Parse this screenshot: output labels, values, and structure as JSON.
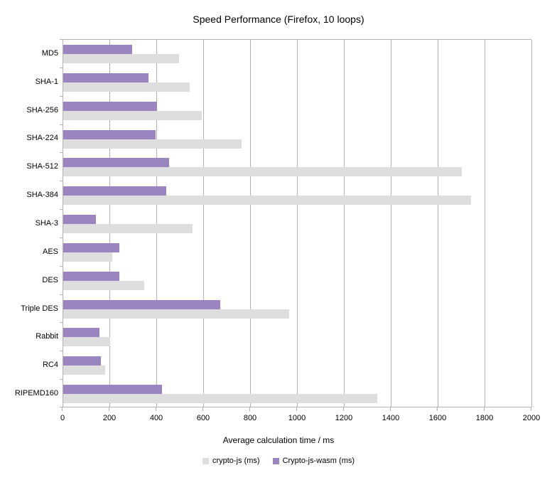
{
  "chart_data": {
    "type": "bar",
    "orientation": "horizontal",
    "title": "Speed Performance (Firefox, 10 loops)",
    "xlabel": "Average calculation time / ms",
    "ylabel": "",
    "categories": [
      "MD5",
      "SHA-1",
      "SHA-256",
      "SHA-224",
      "SHA-512",
      "SHA-384",
      "SHA-3",
      "AES",
      "DES",
      "Triple DES",
      "Rabbit",
      "RC4",
      "RIPEMD160"
    ],
    "series": [
      {
        "name": "crypto-js (ms)",
        "color": "#dedede",
        "values": [
          495,
          540,
          590,
          760,
          1700,
          1740,
          550,
          210,
          345,
          965,
          200,
          180,
          1340
        ]
      },
      {
        "name": "Crypto-js-wasm (ms)",
        "color": "#9a85c0",
        "values": [
          295,
          365,
          400,
          395,
          450,
          440,
          140,
          240,
          240,
          670,
          155,
          160,
          420
        ]
      }
    ],
    "xlim": [
      0,
      2000
    ],
    "xticks": [
      0,
      200,
      400,
      600,
      800,
      1000,
      1200,
      1400,
      1600,
      1800,
      2000
    ],
    "grid": true,
    "gridline_color": "#b3b3b3",
    "background_color": "#ffffff",
    "legend_position": "bottom"
  }
}
